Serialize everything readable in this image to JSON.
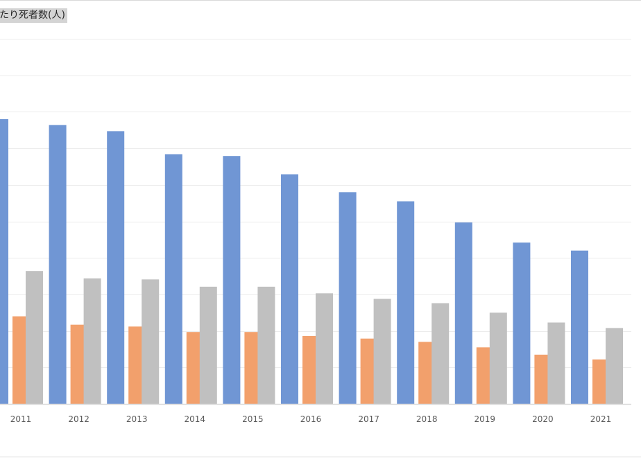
{
  "title_visible": "たり死者数(人)",
  "colors": {
    "series_1": "#7096d4",
    "series_2": "#f2a06c",
    "series_3": "#c0c0c0",
    "gridline": "#ececec",
    "axis": "#d9d9d9"
  },
  "chart_data": {
    "type": "bar",
    "title": "たり死者数(人)",
    "xlabel": "",
    "ylabel": "",
    "grid": true,
    "legend": "none visible",
    "categories": [
      "2011",
      "2012",
      "2013",
      "2014",
      "2015",
      "2016",
      "2017",
      "2018",
      "2019",
      "2020",
      "2021"
    ],
    "ylim": [
      0,
      10
    ],
    "series": [
      {
        "values": [
          7.8,
          7.64,
          7.47,
          6.84,
          6.79,
          6.29,
          5.8,
          5.55,
          4.97,
          4.42,
          4.2
        ]
      },
      {
        "values": [
          2.4,
          2.17,
          2.12,
          1.97,
          1.97,
          1.86,
          1.79,
          1.7,
          1.55,
          1.35,
          1.22
        ]
      },
      {
        "values": [
          3.64,
          3.44,
          3.41,
          3.21,
          3.21,
          3.03,
          2.88,
          2.76,
          2.5,
          2.23,
          2.08
        ]
      }
    ]
  }
}
